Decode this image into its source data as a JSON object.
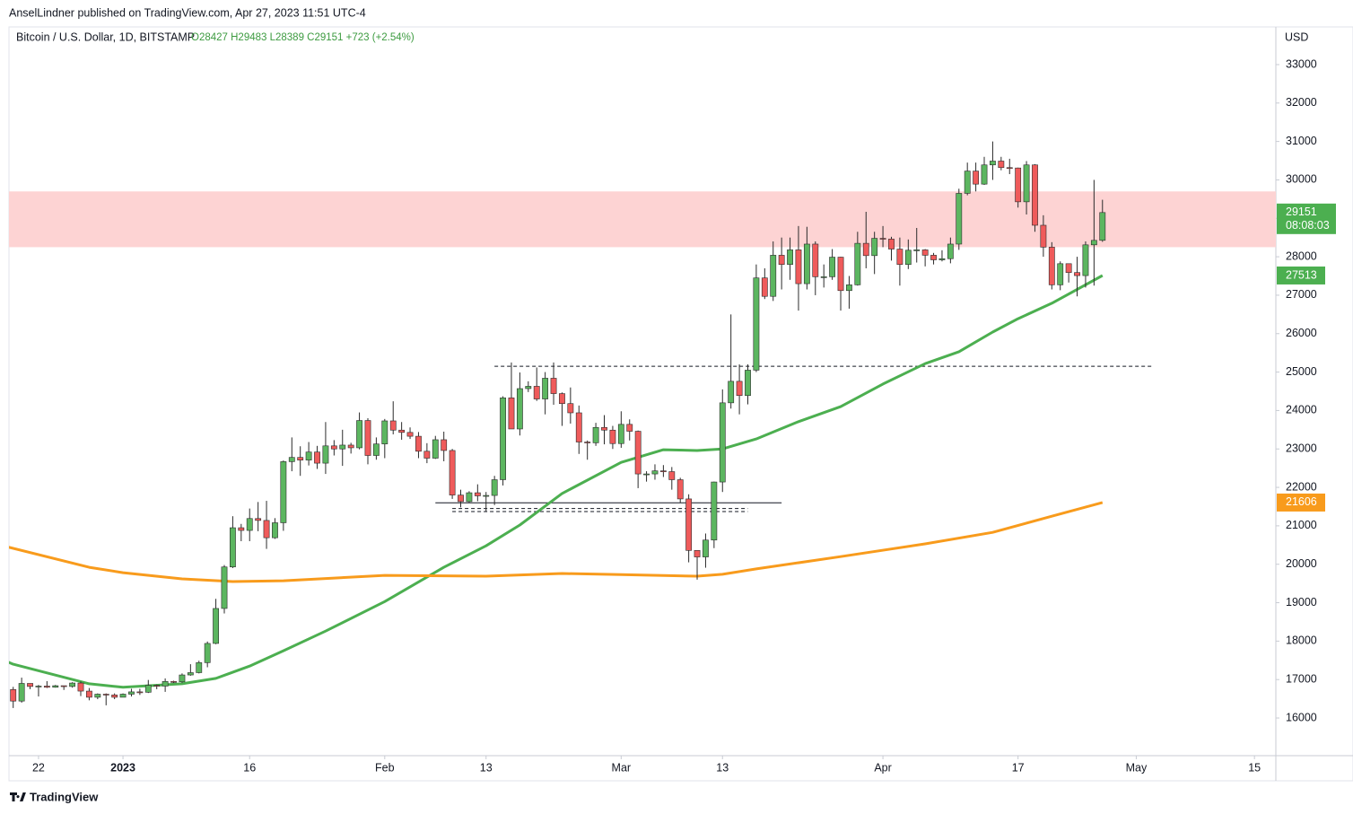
{
  "header": "AnselLindner published on TradingView.com, Apr 27, 2023 11:51 UTC-4",
  "footer": "TradingView",
  "chart_data": {
    "type": "candlestick",
    "title": "Bitcoin / U.S. Dollar, 1D, BITSTAMP",
    "ohlc_legend": "O28427 H29483 L28389 C29151 +723 (+2.54%)",
    "currency": "USD",
    "up_color": "#5cb660",
    "down_color": "#ef5b5b",
    "xlim": [
      "2022-12-18",
      "2023-05-17"
    ],
    "ylim": [
      15020,
      33980
    ],
    "yticks": [
      16000,
      17000,
      18000,
      19000,
      20000,
      21000,
      22000,
      23000,
      24000,
      25000,
      26000,
      27000,
      28000,
      29000,
      30000,
      31000,
      32000,
      33000
    ],
    "xticks": [
      {
        "value": "2022-12-22",
        "label": "22"
      },
      {
        "value": "2023-01-01",
        "label": "2023",
        "bold": true
      },
      {
        "value": "2023-01-16",
        "label": "16"
      },
      {
        "value": "2023-02-01",
        "label": "Feb"
      },
      {
        "value": "2023-02-13",
        "label": "13"
      },
      {
        "value": "2023-03-01",
        "label": "Mar"
      },
      {
        "value": "2023-03-13",
        "label": "13"
      },
      {
        "value": "2023-04-01",
        "label": "Apr"
      },
      {
        "value": "2023-04-17",
        "label": "17"
      },
      {
        "value": "2023-05-01",
        "label": "May"
      },
      {
        "value": "2023-05-15",
        "label": "15"
      }
    ],
    "x": [
      "2022-12-19",
      "2022-12-20",
      "2022-12-21",
      "2022-12-22",
      "2022-12-23",
      "2022-12-24",
      "2022-12-25",
      "2022-12-26",
      "2022-12-27",
      "2022-12-28",
      "2022-12-29",
      "2022-12-30",
      "2022-12-31",
      "2023-01-01",
      "2023-01-02",
      "2023-01-03",
      "2023-01-04",
      "2023-01-05",
      "2023-01-06",
      "2023-01-07",
      "2023-01-08",
      "2023-01-09",
      "2023-01-10",
      "2023-01-11",
      "2023-01-12",
      "2023-01-13",
      "2023-01-14",
      "2023-01-15",
      "2023-01-16",
      "2023-01-17",
      "2023-01-18",
      "2023-01-19",
      "2023-01-20",
      "2023-01-21",
      "2023-01-22",
      "2023-01-23",
      "2023-01-24",
      "2023-01-25",
      "2023-01-26",
      "2023-01-27",
      "2023-01-28",
      "2023-01-29",
      "2023-01-30",
      "2023-01-31",
      "2023-02-01",
      "2023-02-02",
      "2023-02-03",
      "2023-02-04",
      "2023-02-05",
      "2023-02-06",
      "2023-02-07",
      "2023-02-08",
      "2023-02-09",
      "2023-02-10",
      "2023-02-11",
      "2023-02-12",
      "2023-02-13",
      "2023-02-14",
      "2023-02-15",
      "2023-02-16",
      "2023-02-17",
      "2023-02-18",
      "2023-02-19",
      "2023-02-20",
      "2023-02-21",
      "2023-02-22",
      "2023-02-23",
      "2023-02-24",
      "2023-02-25",
      "2023-02-26",
      "2023-02-27",
      "2023-02-28",
      "2023-03-01",
      "2023-03-02",
      "2023-03-03",
      "2023-03-04",
      "2023-03-05",
      "2023-03-06",
      "2023-03-07",
      "2023-03-08",
      "2023-03-09",
      "2023-03-10",
      "2023-03-11",
      "2023-03-12",
      "2023-03-13",
      "2023-03-14",
      "2023-03-15",
      "2023-03-16",
      "2023-03-17",
      "2023-03-18",
      "2023-03-19",
      "2023-03-20",
      "2023-03-21",
      "2023-03-22",
      "2023-03-23",
      "2023-03-24",
      "2023-03-25",
      "2023-03-26",
      "2023-03-27",
      "2023-03-28",
      "2023-03-29",
      "2023-03-30",
      "2023-03-31",
      "2023-04-01",
      "2023-04-02",
      "2023-04-03",
      "2023-04-04",
      "2023-04-05",
      "2023-04-06",
      "2023-04-07",
      "2023-04-08",
      "2023-04-09",
      "2023-04-10",
      "2023-04-11",
      "2023-04-12",
      "2023-04-13",
      "2023-04-14",
      "2023-04-15",
      "2023-04-16",
      "2023-04-17",
      "2023-04-18",
      "2023-04-19",
      "2023-04-20",
      "2023-04-21",
      "2023-04-22",
      "2023-04-23",
      "2023-04-24",
      "2023-04-25",
      "2023-04-26",
      "2023-04-27"
    ],
    "open": [
      16740,
      16440,
      16900,
      16820,
      16830,
      16800,
      16840,
      16820,
      16910,
      16700,
      16540,
      16620,
      16600,
      16540,
      16620,
      16680,
      16670,
      16850,
      16830,
      16950,
      16940,
      17120,
      17180,
      17440,
      17940,
      18850,
      19930,
      20950,
      20880,
      21190,
      21140,
      20690,
      21080,
      22670,
      22780,
      22710,
      22920,
      22630,
      23080,
      23000,
      23100,
      23030,
      23740,
      22830,
      23130,
      23730,
      23490,
      23430,
      23330,
      22940,
      22760,
      23240,
      22960,
      21800,
      21630,
      21860,
      21780,
      21790,
      22200,
      24330,
      23520,
      24570,
      24630,
      24300,
      24840,
      24440,
      24180,
      23940,
      23180,
      23160,
      23560,
      23490,
      23140,
      23640,
      23460,
      22350,
      22350,
      22430,
      22410,
      22200,
      21700,
      20360,
      20190,
      20630,
      22140,
      24200,
      24760,
      24390,
      25050,
      27450,
      26970,
      28040,
      27800,
      28180,
      27300,
      28330,
      27480,
      27480,
      27990,
      27120,
      27270,
      28350,
      28030,
      28480,
      28460,
      28200,
      27800,
      28170,
      28180,
      28040,
      27920,
      27950,
      28330,
      29650,
      30230,
      29890,
      30390,
      30490,
      30320,
      30310,
      29430,
      30390,
      28820,
      28250,
      27270,
      27820,
      27590,
      27510,
      28310,
      28427
    ],
    "high": [
      16810,
      17050,
      16900,
      16860,
      16960,
      16860,
      16840,
      16930,
      16950,
      16780,
      16640,
      16640,
      16640,
      16640,
      16760,
      16760,
      16990,
      16870,
      17030,
      16970,
      17160,
      17400,
      17490,
      17990,
      19100,
      19980,
      21250,
      21050,
      21450,
      21620,
      21650,
      21200,
      22700,
      23300,
      23070,
      23180,
      23080,
      23700,
      23230,
      23500,
      23160,
      23950,
      23800,
      23300,
      23780,
      24240,
      23700,
      23560,
      23440,
      23150,
      23340,
      23450,
      23000,
      21940,
      21900,
      22080,
      21880,
      22300,
      24370,
      25250,
      24990,
      24760,
      25120,
      25000,
      25250,
      24470,
      24600,
      24130,
      23220,
      23680,
      23880,
      23600,
      23980,
      23770,
      23480,
      22420,
      22600,
      22580,
      22530,
      22250,
      21820,
      20360,
      20800,
      22150,
      24550,
      26500,
      25200,
      25200,
      27800,
      27700,
      28400,
      28500,
      28500,
      28800,
      28780,
      28400,
      27800,
      28200,
      28000,
      27500,
      28650,
      29170,
      28650,
      28800,
      28520,
      28500,
      28450,
      28750,
      28200,
      28100,
      28170,
      28500,
      29770,
      30450,
      30450,
      30600,
      31000,
      30600,
      30550,
      30320,
      30490,
      30410,
      29080,
      28380,
      27880,
      27820,
      28000,
      28400,
      30000,
      29483
    ],
    "low": [
      16260,
      16400,
      16750,
      16560,
      16780,
      16790,
      16730,
      16790,
      16570,
      16460,
      16490,
      16330,
      16490,
      16540,
      16560,
      16600,
      16650,
      16750,
      16680,
      16910,
      16910,
      17100,
      17160,
      17320,
      17920,
      18720,
      19900,
      20600,
      20600,
      20860,
      20400,
      20660,
      20870,
      22420,
      22300,
      22570,
      22480,
      22350,
      22830,
      22560,
      22880,
      22990,
      22600,
      22720,
      22760,
      23380,
      23240,
      23260,
      22760,
      22630,
      22740,
      22680,
      21700,
      21480,
      21600,
      21640,
      21370,
      21540,
      22050,
      23550,
      23350,
      24480,
      24250,
      23900,
      24150,
      23600,
      23660,
      22870,
      22720,
      23080,
      23120,
      23000,
      23030,
      23220,
      21980,
      22150,
      22200,
      22270,
      21940,
      21600,
      20050,
      19600,
      19910,
      20420,
      21880,
      24050,
      23900,
      24160,
      25000,
      26900,
      26850,
      27150,
      27400,
      26600,
      27150,
      27000,
      27200,
      27400,
      26600,
      26650,
      27250,
      27700,
      27550,
      28250,
      27900,
      27250,
      27680,
      27850,
      27750,
      27800,
      27880,
      27830,
      28180,
      29600,
      29700,
      29870,
      30000,
      30250,
      30150,
      29280,
      29100,
      28650,
      28000,
      27150,
      27130,
      27330,
      26970,
      27200,
      27250,
      28389
    ],
    "close": [
      16440,
      16900,
      16820,
      16830,
      16800,
      16840,
      16820,
      16910,
      16700,
      16540,
      16620,
      16600,
      16540,
      16620,
      16680,
      16670,
      16850,
      16830,
      16950,
      16940,
      17120,
      17180,
      17440,
      17940,
      18850,
      19930,
      20950,
      20880,
      21190,
      21140,
      20690,
      21080,
      22670,
      22780,
      22710,
      22920,
      22630,
      23080,
      23000,
      23100,
      23030,
      23740,
      22830,
      23130,
      23730,
      23490,
      23430,
      23330,
      22940,
      22760,
      23240,
      22960,
      21800,
      21630,
      21860,
      21780,
      21790,
      22200,
      24330,
      23520,
      24570,
      24630,
      24300,
      24840,
      24440,
      24180,
      23940,
      23180,
      23160,
      23560,
      23490,
      23140,
      23640,
      23460,
      22350,
      22350,
      22430,
      22410,
      22200,
      21700,
      20360,
      20190,
      20630,
      22140,
      24200,
      24760,
      24390,
      25050,
      27450,
      26970,
      28040,
      27800,
      28180,
      27300,
      28330,
      27480,
      27480,
      27990,
      27120,
      27270,
      28350,
      28030,
      28480,
      28460,
      28200,
      27800,
      28170,
      28180,
      28040,
      27920,
      27950,
      28330,
      29650,
      30230,
      29890,
      30390,
      30490,
      30320,
      30310,
      29430,
      30390,
      28820,
      28250,
      27270,
      27820,
      27590,
      27510,
      28310,
      28427,
      29151
    ],
    "countdown": "08:08:03",
    "last_color": "#4caf50",
    "lines": [
      {
        "color": "#4caf50",
        "x": [
          "2022-12-18",
          "2022-12-19",
          "2022-12-28",
          "2023-01-01",
          "2023-01-08",
          "2023-01-12",
          "2023-01-16",
          "2023-01-20",
          "2023-01-25",
          "2023-02-01",
          "2023-02-08",
          "2023-02-13",
          "2023-02-17",
          "2023-02-22",
          "2023-03-01",
          "2023-03-06",
          "2023-03-10",
          "2023-03-13",
          "2023-03-17",
          "2023-03-22",
          "2023-03-27",
          "2023-04-01",
          "2023-04-06",
          "2023-04-10",
          "2023-04-14",
          "2023-04-17",
          "2023-04-21",
          "2023-04-27"
        ],
        "values": [
          17490,
          17400,
          16890,
          16800,
          16890,
          17030,
          17350,
          17750,
          18260,
          19030,
          19920,
          20480,
          21020,
          21840,
          22650,
          22980,
          22960,
          23000,
          23260,
          23710,
          24100,
          24690,
          25220,
          25530,
          26040,
          26390,
          26790,
          27513
        ]
      },
      {
        "color": "#f89b1c",
        "x": [
          "2022-12-18",
          "2022-12-28",
          "2023-01-01",
          "2023-01-08",
          "2023-01-14",
          "2023-01-20",
          "2023-02-01",
          "2023-02-13",
          "2023-02-22",
          "2023-03-01",
          "2023-03-10",
          "2023-03-13",
          "2023-03-17",
          "2023-03-27",
          "2023-04-06",
          "2023-04-14",
          "2023-04-21",
          "2023-04-27"
        ],
        "values": [
          20470,
          19920,
          19780,
          19620,
          19550,
          19570,
          19710,
          19690,
          19760,
          19730,
          19690,
          19740,
          19880,
          20200,
          20530,
          20830,
          21250,
          21606
        ]
      }
    ],
    "zone": {
      "from": 28250,
      "to": 29700,
      "color": "#fdd3d3"
    },
    "levels": [
      {
        "value": 25150,
        "from": "2023-02-14",
        "to": "2023-05-03",
        "style": "dashed"
      },
      {
        "value": 21600,
        "from": "2023-02-07",
        "to": "2023-03-20",
        "style": "solid"
      },
      {
        "value": 21450,
        "from": "2023-02-09",
        "to": "2023-03-16",
        "style": "dashed"
      },
      {
        "value": 21370,
        "from": "2023-02-09",
        "to": "2023-03-16",
        "style": "dashed"
      }
    ]
  }
}
